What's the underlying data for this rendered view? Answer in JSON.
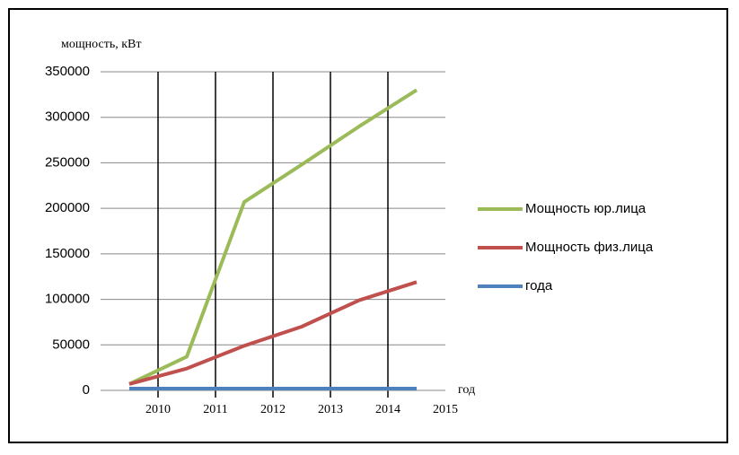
{
  "chart_data": {
    "type": "line",
    "y_label": "мощность, кВт",
    "x_label": "год",
    "categories": [
      "2010",
      "2011",
      "2012",
      "2013",
      "2014",
      "2015"
    ],
    "series": [
      {
        "name": "Мощность юр.лица",
        "color": "#9bbb59",
        "values": [
          7000,
          37000,
          207000,
          248000,
          290000,
          330000
        ]
      },
      {
        "name": "Мощность физ.лица",
        "color": "#c0504d",
        "values": [
          7000,
          24000,
          49000,
          70000,
          99000,
          119000
        ]
      },
      {
        "name": "года",
        "color": "#4f81bd",
        "values": [
          2010,
          2011,
          2012,
          2013,
          2014,
          2015
        ]
      }
    ],
    "ylim": [
      0,
      350000
    ],
    "yticks": [
      0,
      50000,
      100000,
      150000,
      200000,
      250000,
      300000,
      350000
    ],
    "grid": true,
    "legend": "right"
  }
}
